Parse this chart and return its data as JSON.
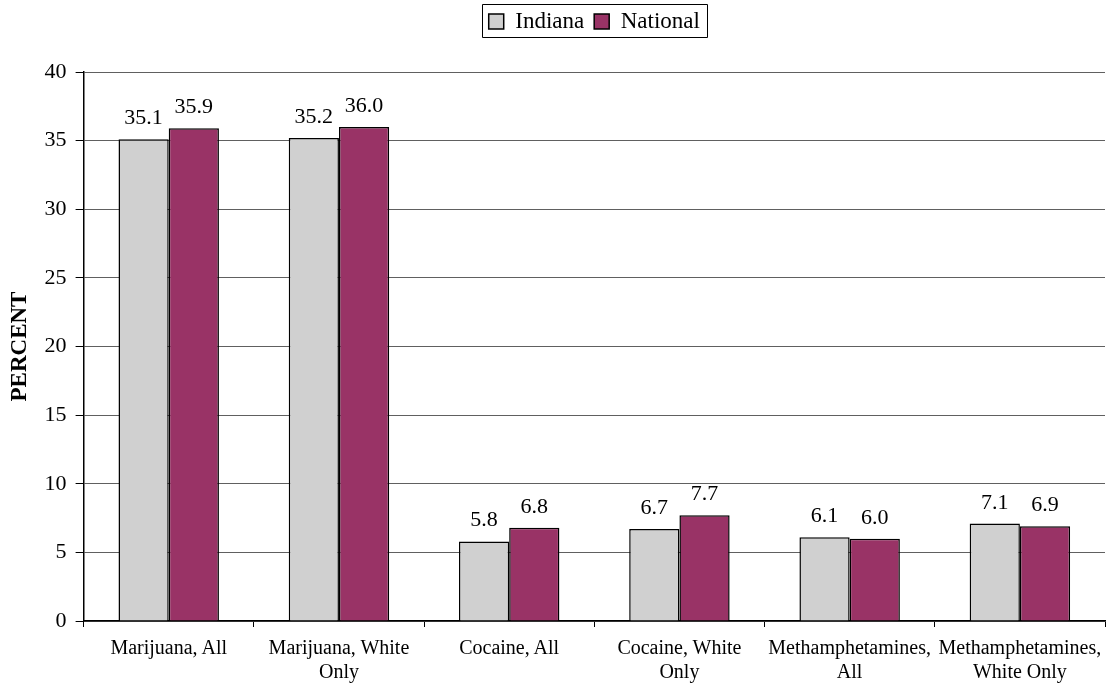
{
  "chart_data": {
    "type": "bar",
    "categories": [
      "Marijuana, All",
      "Marijuana, White Only",
      "Cocaine, All",
      "Cocaine, White Only",
      "Methamphetamines, All",
      "Methamphetamines, White Only"
    ],
    "ylabel": "PERCENT",
    "ylim": [
      0,
      40
    ],
    "yticks": [
      0,
      5,
      10,
      15,
      20,
      25,
      30,
      35,
      40
    ],
    "grid": "y",
    "legend": "top",
    "series": [
      {
        "name": "Indiana",
        "color": "#d0d0d0",
        "values": [
          35.1,
          35.2,
          5.8,
          6.7,
          6.1,
          7.1
        ],
        "value_labels": [
          "35.1",
          "35.2",
          "5.8",
          "6.7",
          "6.1",
          "7.1"
        ]
      },
      {
        "name": "National",
        "color": "#993366",
        "values": [
          35.9,
          36.0,
          6.8,
          7.7,
          6.0,
          6.9
        ],
        "value_labels": [
          "35.9",
          "36.0",
          "6.8",
          "7.7",
          "6.0",
          "6.9"
        ]
      }
    ]
  }
}
